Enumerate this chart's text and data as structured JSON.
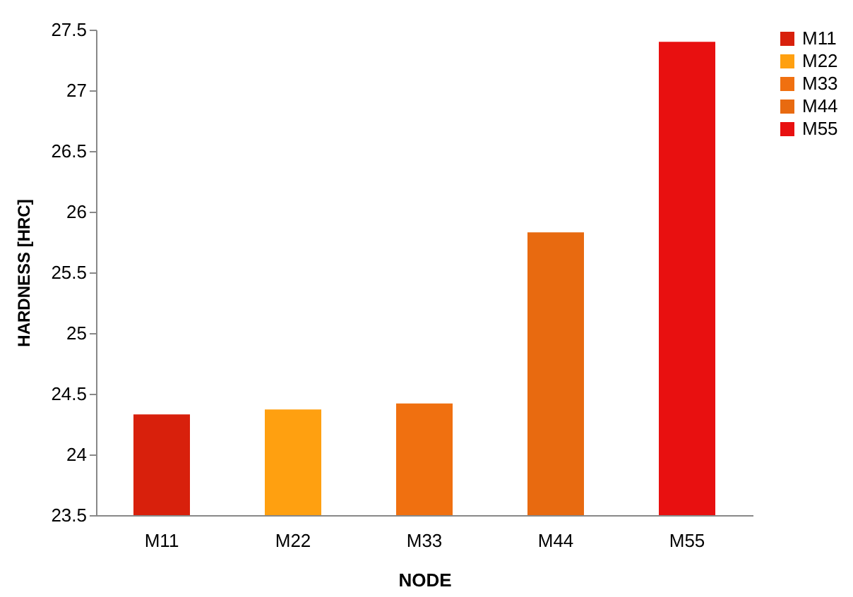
{
  "chart_data": {
    "type": "bar",
    "categories": [
      "M11",
      "M22",
      "M33",
      "M44",
      "M55"
    ],
    "series": [
      {
        "name": "M11",
        "color": "#d8200c",
        "values": [
          24.33,
          null,
          null,
          null,
          null
        ]
      },
      {
        "name": "M22",
        "color": "#ffa010",
        "values": [
          null,
          24.37,
          null,
          null,
          null
        ]
      },
      {
        "name": "M33",
        "color": "#f07010",
        "values": [
          null,
          null,
          24.42,
          null,
          null
        ]
      },
      {
        "name": "M44",
        "color": "#e86a10",
        "values": [
          null,
          null,
          null,
          25.83,
          null
        ]
      },
      {
        "name": "M55",
        "color": "#e81010",
        "values": [
          null,
          null,
          null,
          null,
          27.4
        ]
      }
    ],
    "xlabel": "NODE",
    "ylabel": "HARDNESS [HRC]",
    "ylim": [
      23.5,
      27.5
    ],
    "yticks": [
      23.5,
      24,
      24.5,
      25,
      25.5,
      26,
      26.5,
      27,
      27.5
    ],
    "grid": false,
    "legend": "right"
  }
}
